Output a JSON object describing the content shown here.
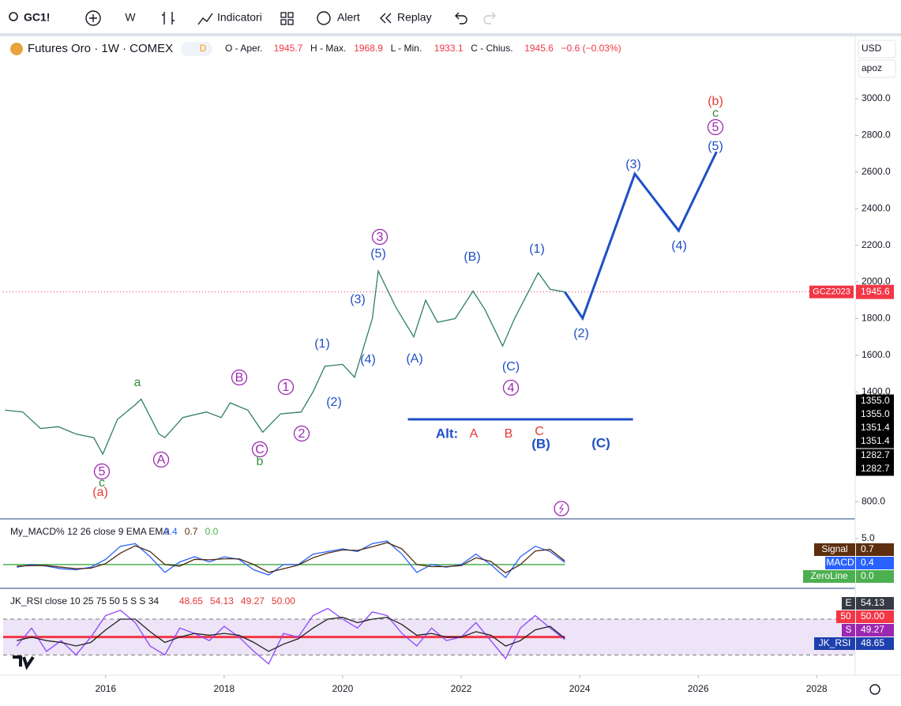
{
  "toolbar": {
    "symbol": "GC1!",
    "interval": "W",
    "indicators": "Indicatori",
    "alert": "Alert",
    "replay": "Replay"
  },
  "currency": "USD",
  "scale_mode": "apoz",
  "chart_data": [
    {
      "type": "line",
      "title": "Futures Oro · 1W · COMEX",
      "badge": "D",
      "ohlc": [
        {
          "label": "O - Aper.",
          "value": "1945.7"
        },
        {
          "label": "H - Max.",
          "value": "1968.9"
        },
        {
          "label": "L - Min.",
          "value": "1933.1"
        },
        {
          "label": "C - Chius.",
          "value": "1945.6"
        }
      ],
      "change": "−0.6 (−0.03%)",
      "x": [
        2014.3,
        2014.6,
        2014.9,
        2015.2,
        2015.5,
        2015.8,
        2015.95,
        2016.2,
        2016.5,
        2016.6,
        2016.9,
        2017.0,
        2017.3,
        2017.7,
        2017.95,
        2018.1,
        2018.4,
        2018.65,
        2018.95,
        2019.3,
        2019.5,
        2019.7,
        2020.0,
        2020.2,
        2020.5,
        2020.6,
        2020.9,
        2021.2,
        2021.4,
        2021.6,
        2021.9,
        2022.2,
        2022.4,
        2022.7,
        2022.9,
        2023.3,
        2023.5,
        2023.75
      ],
      "series": [
        {
          "color": "#2e7d6b",
          "values": [
            1300,
            1290,
            1200,
            1210,
            1170,
            1150,
            1060,
            1250,
            1330,
            1360,
            1170,
            1150,
            1260,
            1290,
            1260,
            1340,
            1300,
            1180,
            1280,
            1290,
            1400,
            1540,
            1550,
            1480,
            1800,
            2060,
            1860,
            1700,
            1900,
            1780,
            1800,
            1950,
            1850,
            1650,
            1800,
            2050,
            1960,
            1945.6
          ]
        }
      ],
      "xlim": [
        2014.27,
        2028.65
      ],
      "xticks": [
        2016,
        2018,
        2020,
        2022,
        2024,
        2026,
        2028
      ],
      "ylim": [
        707,
        3345
      ],
      "yticks": [
        {
          "value": 800,
          "label": "800.0"
        },
        {
          "value": 1400,
          "label": "1400.0"
        },
        {
          "value": 1600,
          "label": "1600.0"
        },
        {
          "value": 1800,
          "label": "1800.0"
        },
        {
          "value": 2000,
          "label": "2000.0"
        },
        {
          "value": 2200,
          "label": "2200.0"
        },
        {
          "value": 2400,
          "label": "2400.0"
        },
        {
          "value": 2600,
          "label": "2600.0"
        },
        {
          "value": 2800,
          "label": "2800.0"
        },
        {
          "value": 3000,
          "label": "3000.0"
        }
      ],
      "last_price": {
        "symbol": "GCZ2023",
        "value": 1945.6,
        "color": "#f23645"
      },
      "price_labels": [
        {
          "value": 1355,
          "label": "1355.0"
        },
        {
          "value": 1355,
          "label": "1355.0"
        },
        {
          "value": 1351.4,
          "label": "1351.4"
        },
        {
          "value": 1351.4,
          "label": "1351.4"
        },
        {
          "value": 1282.7,
          "label": "1282.7"
        },
        {
          "value": 1282.7,
          "label": "1282.7"
        }
      ],
      "wave_path": {
        "color": "#1e4fc7",
        "x": [
          2023.75,
          2024.05,
          2024.93,
          2025.67,
          2026.31
        ],
        "y": [
          1945.6,
          1802,
          2590,
          2280,
          2711
        ]
      },
      "alt_line": {
        "color": "#1e4fc7",
        "x": [
          2021.1,
          2024.9
        ],
        "y": 1250
      },
      "annotations": [
        {
          "text": "5",
          "color": "#9c27b0"
        },
        {
          "text": "c",
          "color": "#388e3c"
        },
        {
          "text": "(a)",
          "color": "#e53935"
        },
        {
          "text": "a",
          "color": "#388e3c"
        },
        {
          "text": "A",
          "color": "#9c27b0"
        },
        {
          "text": "B",
          "color": "#9c27b0"
        },
        {
          "text": "C",
          "color": "#9c27b0"
        },
        {
          "text": "b",
          "color": "#388e3c"
        },
        {
          "text": "1",
          "color": "#9c27b0"
        },
        {
          "text": "2",
          "color": "#9c27b0"
        },
        {
          "text": "(1)",
          "color": "#1e4fc7"
        },
        {
          "text": "(2)",
          "color": "#1e4fc7"
        },
        {
          "text": "(3)",
          "color": "#1e4fc7"
        },
        {
          "text": "(4)",
          "color": "#1e4fc7"
        },
        {
          "text": "3",
          "color": "#9c27b0"
        },
        {
          "text": "(5)",
          "color": "#1e4fc7"
        },
        {
          "text": "(A)",
          "color": "#1e4fc7"
        },
        {
          "text": "(B)",
          "color": "#1e4fc7"
        },
        {
          "text": "(C)",
          "color": "#1e4fc7"
        },
        {
          "text": "4",
          "color": "#9c27b0"
        },
        {
          "text": "(1)",
          "color": "#1e4fc7"
        },
        {
          "text": "(2)",
          "color": "#1e4fc7"
        },
        {
          "text": "(3)",
          "color": "#1e4fc7"
        },
        {
          "text": "(4)",
          "color": "#1e4fc7"
        },
        {
          "text": "(5)",
          "color": "#1e4fc7"
        },
        {
          "text": "5",
          "color": "#9c27b0"
        },
        {
          "text": "c",
          "color": "#388e3c"
        },
        {
          "text": "(b)",
          "color": "#e53935"
        },
        {
          "text": "Alt:",
          "color": "#1e4fc7"
        },
        {
          "text": "A",
          "color": "#e53935"
        },
        {
          "text": "B",
          "color": "#e53935"
        },
        {
          "text": "C",
          "color": "#e53935"
        },
        {
          "text": "(B)",
          "color": "#1e4fc7"
        },
        {
          "text": "(C)",
          "color": "#1e4fc7"
        }
      ]
    },
    {
      "type": "line",
      "title": "My_MACD% 12 26 close 9 EMA EMA",
      "legend_values": [
        {
          "text": "0.4",
          "color": "#2962ff"
        },
        {
          "text": "0.7",
          "color": "#5d2f0e"
        },
        {
          "text": "0.0",
          "color": "#4caf50"
        }
      ],
      "x": [
        2014.5,
        2014.75,
        2015,
        2015.25,
        2015.5,
        2015.75,
        2016,
        2016.25,
        2016.5,
        2016.75,
        2017,
        2017.25,
        2017.5,
        2017.75,
        2018,
        2018.25,
        2018.5,
        2018.75,
        2019,
        2019.25,
        2019.5,
        2019.75,
        2020,
        2020.25,
        2020.5,
        2020.75,
        2021,
        2021.25,
        2021.5,
        2021.75,
        2022,
        2022.25,
        2022.5,
        2022.75,
        2023,
        2023.25,
        2023.5,
        2023.75
      ],
      "series": [
        {
          "color": "#2962ff",
          "values": [
            -0.5,
            0,
            -0.3,
            -0.8,
            -1,
            -0.5,
            1,
            3.5,
            4,
            1.5,
            -1.5,
            0.5,
            1.5,
            0.5,
            1.5,
            1,
            -1,
            -2,
            0,
            0,
            2,
            2.5,
            3,
            2.5,
            4,
            4.5,
            2,
            -1.5,
            0,
            -0.5,
            0,
            2,
            0,
            -2.5,
            1.5,
            3.5,
            2.5,
            0.4
          ]
        },
        {
          "color": "#4e2a12",
          "values": [
            -0.3,
            -0.2,
            -0.2,
            -0.5,
            -0.8,
            -0.7,
            0.2,
            2.2,
            3.6,
            2.5,
            0,
            -0.3,
            1,
            0.9,
            1.1,
            1.1,
            0,
            -1.5,
            -0.8,
            -0.1,
            1.3,
            2.2,
            2.8,
            2.7,
            3.4,
            4.2,
            3,
            0,
            -0.4,
            -0.4,
            -0.2,
            1.3,
            0.6,
            -1.6,
            0,
            2.6,
            2.9,
            0.7
          ]
        }
      ],
      "zero_line": {
        "value": 0,
        "color": "#4caf50"
      },
      "boxes": [
        {
          "name": "Signal",
          "label": "0.7",
          "color": "#5d2f0e"
        },
        {
          "name": "MACD",
          "label": "0.4",
          "color": "#2962ff"
        },
        {
          "name": "ZeroLine",
          "label": "0.0",
          "color": "#4caf50"
        }
      ],
      "ylim": [
        -4.1,
        8.3
      ],
      "yticks": [
        {
          "value": 5,
          "label": "5.0"
        }
      ]
    },
    {
      "type": "line",
      "title": "JK_RSI close 10 25 75 50 5 S S 34",
      "legend_values": [
        {
          "text": "48.65",
          "color": "#e53935"
        },
        {
          "text": "54.13",
          "color": "#e53935"
        },
        {
          "text": "49.27",
          "color": "#e53935"
        },
        {
          "text": "50.00",
          "color": "#e53935"
        }
      ],
      "x": [
        2014.5,
        2014.75,
        2015,
        2015.25,
        2015.5,
        2015.75,
        2016,
        2016.25,
        2016.5,
        2016.75,
        2017,
        2017.25,
        2017.5,
        2017.75,
        2018,
        2018.25,
        2018.5,
        2018.75,
        2019,
        2019.25,
        2019.5,
        2019.75,
        2020,
        2020.25,
        2020.5,
        2020.75,
        2021,
        2021.25,
        2021.5,
        2021.75,
        2022,
        2022.25,
        2022.5,
        2022.75,
        2023,
        2023.25,
        2023.5,
        2023.75
      ],
      "series": [
        {
          "color": "#8e44ff",
          "values": [
            45,
            55,
            42,
            48,
            40,
            50,
            62,
            65,
            58,
            45,
            40,
            55,
            52,
            48,
            56,
            50,
            42,
            35,
            52,
            50,
            62,
            66,
            60,
            55,
            64,
            62,
            52,
            45,
            55,
            48,
            50,
            58,
            48,
            38,
            55,
            62,
            55,
            48.65
          ]
        },
        {
          "color": "#222222",
          "values": [
            48,
            50,
            48,
            47,
            45,
            47,
            54,
            60,
            60,
            53,
            47,
            50,
            52,
            51,
            52,
            51,
            47,
            42,
            46,
            49,
            55,
            60,
            61,
            58,
            60,
            61,
            57,
            51,
            52,
            50,
            50,
            53,
            51,
            45,
            48,
            54,
            56,
            49.27
          ]
        }
      ],
      "midline": {
        "value": 50,
        "color": "#f23645"
      },
      "band": [
        40,
        60
      ],
      "boxes": [
        {
          "name": "E",
          "label": "54.13",
          "color": "#363a45"
        },
        {
          "name": "50",
          "label": "50.00",
          "color": "#f23645"
        },
        {
          "name": "S",
          "label": "49.27",
          "color": "#9c27b0"
        },
        {
          "name": "JK_RSI",
          "label": "48.65",
          "color": "#1e3fae"
        }
      ],
      "ylim": [
        30,
        75
      ]
    }
  ]
}
